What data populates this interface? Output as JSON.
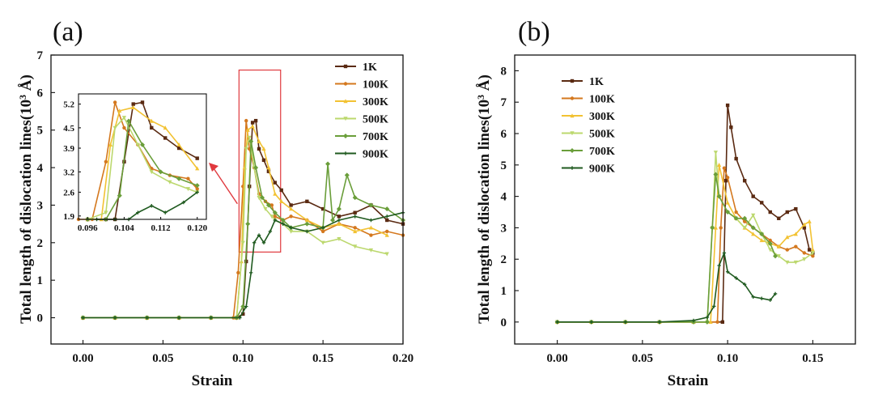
{
  "chart_data": [
    {
      "panel_label": "(a)",
      "type": "line",
      "xlabel": "Strain",
      "ylabel_main": "Total length of dislocation lines(10",
      "ylabel_sup": "3",
      "ylabel_unit": " Å)",
      "xlim": [
        -0.02,
        0.2
      ],
      "ylim": [
        -0.7,
        7
      ],
      "xticks": [
        0.0,
        0.05,
        0.1,
        0.15,
        0.2
      ],
      "xtick_labels": [
        "0.00",
        "0.05",
        "0.10",
        "0.15",
        "0.20"
      ],
      "yticks": [
        0,
        1,
        2,
        3,
        4,
        5,
        6,
        7
      ],
      "ytick_labels": [
        "0",
        "1",
        "2",
        "3",
        "4",
        "5",
        "6",
        "7"
      ],
      "legend_position": "top-right",
      "series": [
        {
          "name": "1K",
          "color": "#5a2a12",
          "x": [
            0,
            0.02,
            0.04,
            0.06,
            0.08,
            0.096,
            0.1,
            0.102,
            0.104,
            0.106,
            0.108,
            0.11,
            0.113,
            0.116,
            0.12,
            0.124,
            0.13,
            0.14,
            0.15,
            0.16,
            0.17,
            0.18,
            0.19,
            0.2
          ],
          "y": [
            0,
            0,
            0,
            0,
            0,
            0,
            0.1,
            1.5,
            3.5,
            5.2,
            5.25,
            4.5,
            4.2,
            3.9,
            3.6,
            3.4,
            3.0,
            3.1,
            2.9,
            2.7,
            2.8,
            3.0,
            2.6,
            2.5
          ]
        },
        {
          "name": "100K",
          "color": "#d4781e",
          "x": [
            0,
            0.02,
            0.04,
            0.06,
            0.08,
            0.094,
            0.097,
            0.1,
            0.102,
            0.104,
            0.107,
            0.11,
            0.114,
            0.118,
            0.12,
            0.125,
            0.13,
            0.14,
            0.15,
            0.16,
            0.17,
            0.18,
            0.19,
            0.2
          ],
          "y": [
            0,
            0,
            0,
            0,
            0,
            0,
            1.2,
            3.5,
            5.25,
            4.5,
            4.0,
            3.3,
            3.1,
            3.0,
            2.7,
            2.6,
            2.7,
            2.6,
            2.3,
            2.5,
            2.4,
            2.2,
            2.3,
            2.2
          ]
        },
        {
          "name": "300K",
          "color": "#f2c233",
          "x": [
            0,
            0.02,
            0.04,
            0.06,
            0.08,
            0.096,
            0.099,
            0.101,
            0.103,
            0.106,
            0.11,
            0.113,
            0.116,
            0.12,
            0.124,
            0.13,
            0.14,
            0.15,
            0.16,
            0.17,
            0.18,
            0.19
          ],
          "y": [
            0,
            0,
            0,
            0,
            0,
            0,
            1.5,
            4.0,
            5.0,
            5.1,
            4.7,
            4.5,
            4.0,
            3.3,
            3.1,
            2.9,
            2.6,
            2.4,
            2.5,
            2.3,
            2.4,
            2.2
          ]
        },
        {
          "name": "500K",
          "color": "#bcd86e",
          "x": [
            0,
            0.02,
            0.04,
            0.06,
            0.08,
            0.096,
            0.1,
            0.102,
            0.104,
            0.107,
            0.11,
            0.114,
            0.118,
            0.12,
            0.125,
            0.13,
            0.14,
            0.15,
            0.16,
            0.17,
            0.18,
            0.19
          ],
          "y": [
            0,
            0,
            0,
            0,
            0,
            0,
            2.0,
            4.5,
            4.8,
            4.0,
            3.2,
            2.9,
            2.7,
            2.6,
            2.5,
            2.3,
            2.3,
            2.0,
            2.1,
            1.9,
            1.8,
            1.7
          ]
        },
        {
          "name": "700K",
          "color": "#6a9e3a",
          "x": [
            0,
            0.02,
            0.04,
            0.06,
            0.08,
            0.096,
            0.1,
            0.103,
            0.105,
            0.108,
            0.112,
            0.116,
            0.12,
            0.125,
            0.13,
            0.14,
            0.15,
            0.153,
            0.156,
            0.16,
            0.165,
            0.17,
            0.18,
            0.19,
            0.2
          ],
          "y": [
            0,
            0,
            0,
            0,
            0,
            0,
            0.3,
            2.5,
            4.7,
            4.0,
            3.2,
            3.0,
            2.8,
            2.6,
            2.4,
            2.5,
            2.4,
            4.1,
            2.6,
            2.9,
            3.8,
            3.2,
            3.0,
            2.9,
            2.6
          ]
        },
        {
          "name": "900K",
          "color": "#1f5a1f",
          "x": [
            0,
            0.02,
            0.04,
            0.06,
            0.08,
            0.098,
            0.102,
            0.105,
            0.107,
            0.11,
            0.113,
            0.117,
            0.12,
            0.125,
            0.13,
            0.14,
            0.15,
            0.16,
            0.17,
            0.18,
            0.19,
            0.2
          ],
          "y": [
            0,
            0,
            0,
            0,
            0,
            0,
            0.3,
            1.2,
            2.0,
            2.2,
            2.0,
            2.3,
            2.6,
            2.5,
            2.4,
            2.3,
            2.4,
            2.6,
            2.7,
            2.6,
            2.7,
            2.8
          ]
        }
      ],
      "inset": {
        "xlim": [
          0.094,
          0.122
        ],
        "ylim": [
          1.8,
          5.5
        ],
        "xticks": [
          0.096,
          0.104,
          0.112,
          0.12
        ],
        "xtick_labels": [
          "0.096",
          "0.104",
          "0.112",
          "0.120"
        ],
        "yticks": [
          1.9,
          2.6,
          3.2,
          3.9,
          4.5,
          5.2
        ],
        "ytick_labels": [
          "1.9",
          "2.6",
          "3.2",
          "3.9",
          "4.5",
          "5.2"
        ]
      },
      "highlight_box": {
        "x": [
          0.0975,
          0.1235
        ],
        "y": [
          1.75,
          6.6
        ]
      }
    },
    {
      "panel_label": "(b)",
      "type": "line",
      "xlabel": "Strain",
      "ylabel_main": "Total length of dislocation lines(10",
      "ylabel_sup": "3",
      "ylabel_unit": " Å)",
      "xlim": [
        -0.025,
        0.175
      ],
      "ylim": [
        -0.7,
        8.5
      ],
      "xticks": [
        0.0,
        0.05,
        0.1,
        0.15
      ],
      "xtick_labels": [
        "0.00",
        "0.05",
        "0.10",
        "0.15"
      ],
      "yticks": [
        0,
        1,
        2,
        3,
        4,
        5,
        6,
        7,
        8
      ],
      "ytick_labels": [
        "0",
        "1",
        "2",
        "3",
        "4",
        "5",
        "6",
        "7",
        "8"
      ],
      "legend_position": "top-left",
      "series": [
        {
          "name": "1K",
          "color": "#5a2a12",
          "x": [
            0,
            0.02,
            0.04,
            0.06,
            0.08,
            0.097,
            0.099,
            0.1,
            0.102,
            0.105,
            0.11,
            0.115,
            0.12,
            0.125,
            0.13,
            0.135,
            0.14,
            0.145,
            0.148,
            0.15
          ],
          "y": [
            0,
            0,
            0,
            0,
            0,
            0,
            4.5,
            6.9,
            6.2,
            5.2,
            4.5,
            4.0,
            3.8,
            3.5,
            3.3,
            3.5,
            3.6,
            3.0,
            2.3,
            2.2
          ]
        },
        {
          "name": "100K",
          "color": "#d4781e",
          "x": [
            0,
            0.02,
            0.04,
            0.06,
            0.08,
            0.094,
            0.096,
            0.098,
            0.1,
            0.105,
            0.11,
            0.115,
            0.12,
            0.125,
            0.13,
            0.135,
            0.14,
            0.145,
            0.15
          ],
          "y": [
            0,
            0,
            0,
            0,
            0,
            0,
            3.0,
            4.9,
            4.6,
            3.5,
            3.2,
            3.0,
            2.8,
            2.6,
            2.4,
            2.3,
            2.4,
            2.2,
            2.1
          ]
        },
        {
          "name": "300K",
          "color": "#f2c233",
          "x": [
            0,
            0.02,
            0.04,
            0.06,
            0.08,
            0.09,
            0.093,
            0.095,
            0.1,
            0.105,
            0.11,
            0.115,
            0.12,
            0.125,
            0.13,
            0.135,
            0.14,
            0.145,
            0.148,
            0.15
          ],
          "y": [
            0,
            0,
            0,
            0,
            0,
            0,
            3.0,
            5.0,
            3.8,
            3.3,
            3.0,
            2.8,
            2.6,
            2.5,
            2.4,
            2.7,
            2.8,
            3.1,
            3.2,
            2.3
          ]
        },
        {
          "name": "500K",
          "color": "#bcd86e",
          "x": [
            0,
            0.02,
            0.04,
            0.06,
            0.08,
            0.088,
            0.091,
            0.093,
            0.095,
            0.1,
            0.105,
            0.11,
            0.115,
            0.12,
            0.125,
            0.13,
            0.135,
            0.14,
            0.145,
            0.15
          ],
          "y": [
            0,
            0,
            0,
            0,
            0,
            0,
            3.0,
            5.4,
            4.0,
            3.5,
            3.3,
            3.0,
            3.4,
            2.8,
            2.3,
            2.1,
            1.9,
            1.9,
            2.0,
            2.2
          ]
        },
        {
          "name": "700K",
          "color": "#6a9e3a",
          "x": [
            0,
            0.02,
            0.04,
            0.06,
            0.08,
            0.088,
            0.091,
            0.093,
            0.095,
            0.1,
            0.105,
            0.11,
            0.115,
            0.12,
            0.125,
            0.128
          ],
          "y": [
            0,
            0,
            0,
            0,
            0,
            0,
            3.0,
            4.7,
            4.0,
            3.5,
            3.3,
            3.3,
            3.0,
            2.8,
            2.5,
            2.1
          ]
        },
        {
          "name": "900K",
          "color": "#1f5a1f",
          "x": [
            0,
            0.02,
            0.04,
            0.06,
            0.08,
            0.088,
            0.092,
            0.095,
            0.098,
            0.1,
            0.105,
            0.11,
            0.115,
            0.12,
            0.125,
            0.128
          ],
          "y": [
            0,
            0,
            0,
            0,
            0.05,
            0.15,
            0.5,
            1.8,
            2.2,
            1.6,
            1.4,
            1.2,
            0.8,
            0.75,
            0.7,
            0.9
          ]
        }
      ]
    }
  ]
}
